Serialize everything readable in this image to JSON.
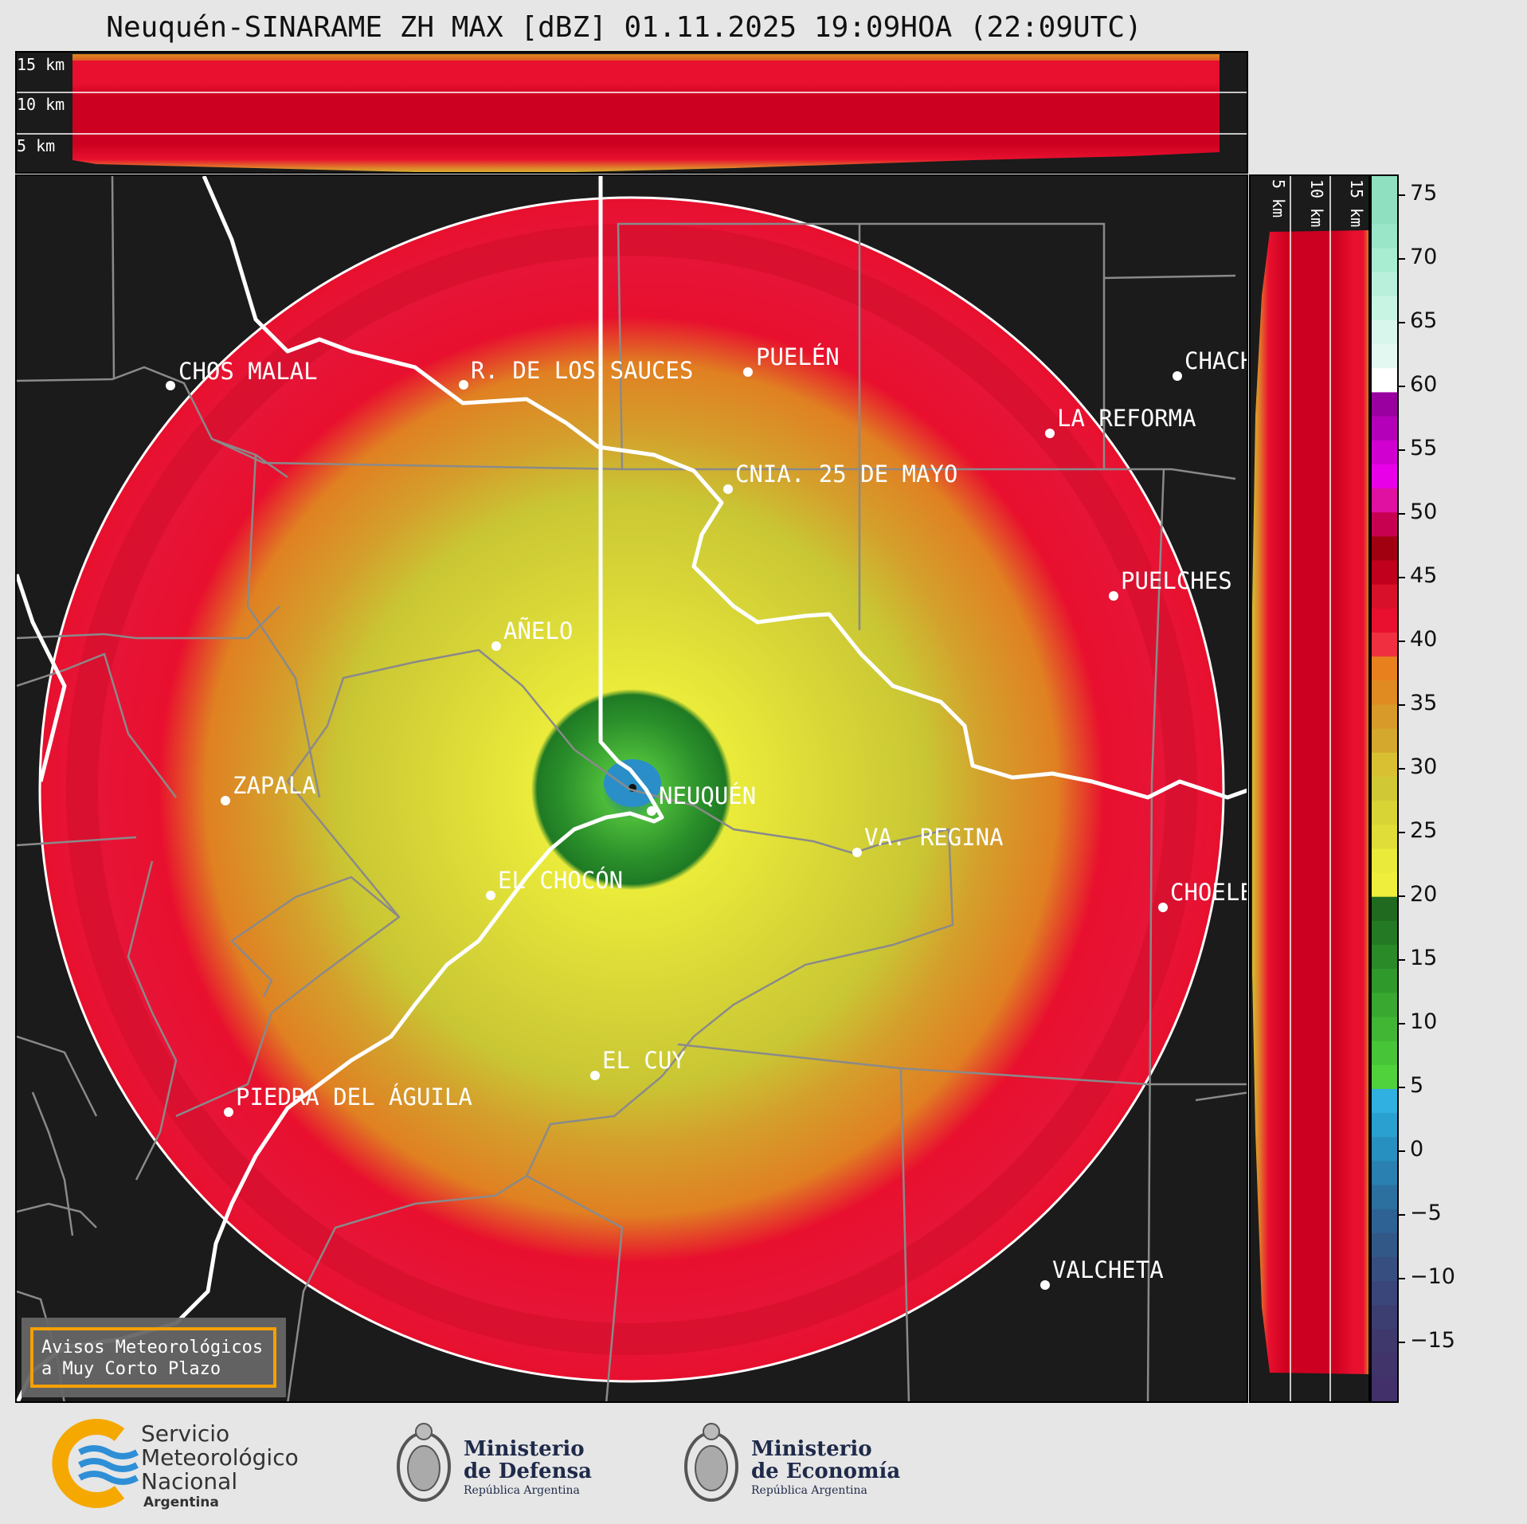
{
  "title": "Neuquén-SINARAME ZH MAX [dBZ] 01.11.2025 19:09HOA (22:09UTC)",
  "height_labels_top": [
    "15 km",
    "10 km",
    "5 km"
  ],
  "height_labels_side": [
    "5 km",
    "10 km",
    "15 km"
  ],
  "colorbar": {
    "unit": "dBZ",
    "ticks": [
      "75",
      "70",
      "65",
      "60",
      "55",
      "50",
      "45",
      "40",
      "35",
      "30",
      "25",
      "20",
      "15",
      "10",
      "5",
      "0",
      "−5",
      "−10",
      "−15"
    ]
  },
  "places": [
    {
      "name": "CHOS MALAL"
    },
    {
      "name": "R. DE LOS SAUCES"
    },
    {
      "name": "PUELÉN"
    },
    {
      "name": "CHACH"
    },
    {
      "name": "LA REFORMA"
    },
    {
      "name": "CNIA. 25 DE MAYO"
    },
    {
      "name": "PUELCHES"
    },
    {
      "name": "AÑELO"
    },
    {
      "name": "ZAPALA"
    },
    {
      "name": "NEUQUÉN"
    },
    {
      "name": "VA. REGINA"
    },
    {
      "name": "EL CHOCÓN"
    },
    {
      "name": "CHOELE"
    },
    {
      "name": "EL CUY"
    },
    {
      "name": "PIEDRA DEL ÁGUILA"
    },
    {
      "name": "VALCHETA"
    }
  ],
  "notice": {
    "line1": "Avisos Meteorológicos",
    "line2": "a Muy Corto Plazo"
  },
  "logos": {
    "smn": {
      "line1": "Servicio",
      "line2": "Meteorológico",
      "line3": "Nacional",
      "line4": "Argentina"
    },
    "defensa": {
      "line1": "Ministerio",
      "line2": "de Defensa",
      "line3": "República Argentina"
    },
    "economia": {
      "line1": "Ministerio",
      "line2": "de Economía",
      "line3": "República Argentina"
    }
  }
}
